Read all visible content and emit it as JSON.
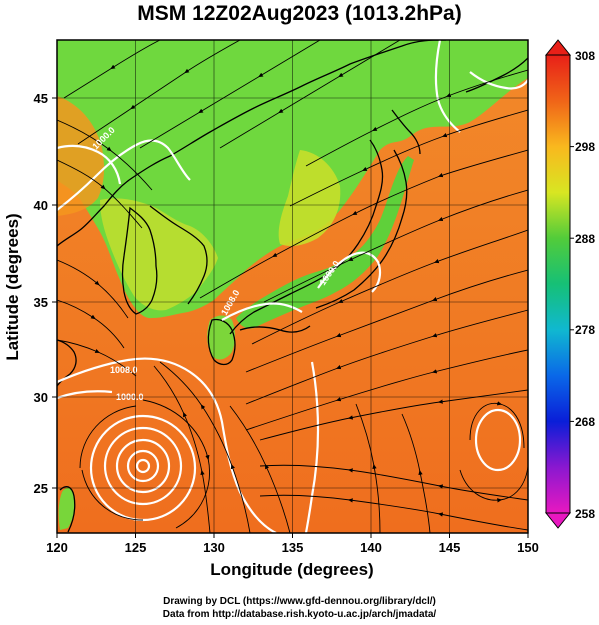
{
  "title": "MSM 12Z02Aug2023 (1013.2hPa)",
  "map": {
    "xlabel": "Longitude (degrees)",
    "ylabel": "Latitude  (degrees)",
    "lon_range": [
      120,
      150
    ],
    "lat_range": [
      22.4,
      47.6
    ],
    "lon_ticks": [
      "120",
      "125",
      "130",
      "135",
      "140",
      "145",
      "150"
    ],
    "lat_ticks": [
      "25",
      "30",
      "35",
      "40",
      "45"
    ],
    "grid": true,
    "field": "temperature (K) with streamlines and pressure contours",
    "colors": {
      "land_green": "#6cd63a",
      "warm_orange": "#f07a22",
      "deep_orange": "#e8621c",
      "coast": "#000000",
      "contour": "#ffffff",
      "streamline": "#000000"
    },
    "contour_labels": [
      {
        "text": "1008.0",
        "lon": 123.8,
        "lat": 28.7
      },
      {
        "text": "1000.0",
        "lon": 125.8,
        "lat": 30.4
      },
      {
        "text": "1000.0",
        "lon": 122.5,
        "lat": 41.5
      },
      {
        "text": "1008.0",
        "lon": 131.0,
        "lat": 34.6
      },
      {
        "text": "1000.0",
        "lon": 138.8,
        "lat": 36.5
      }
    ]
  },
  "colorbar": {
    "labels": [
      "308",
      "298",
      "288",
      "278",
      "268",
      "258"
    ],
    "values": [
      308,
      298,
      288,
      278,
      268,
      258
    ],
    "range": [
      258,
      308
    ]
  },
  "credits": {
    "line1": "Drawing by DCL (https://www.gfd-dennou.org/library/dcl/)",
    "line2": "Data from http://database.rish.kyoto-u.ac.jp/arch/jmadata/"
  }
}
